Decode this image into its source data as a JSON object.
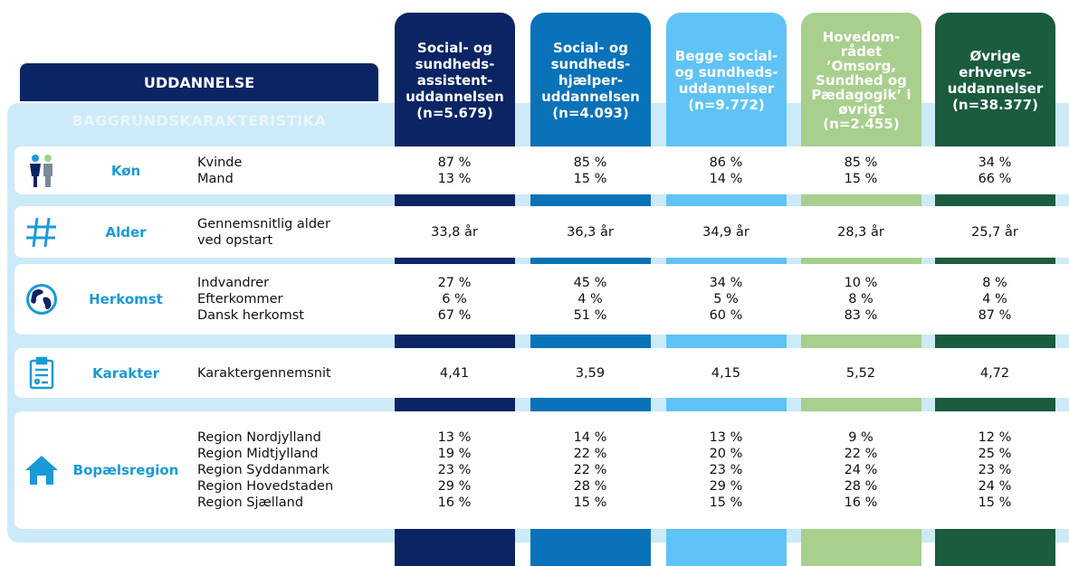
{
  "header": {
    "title": "UDDANNELSE",
    "subtitle": "BAGGRUNDSKARAKTERISTIKA"
  },
  "columns": [
    {
      "lines": [
        "Social- og",
        "sundheds-",
        "assistent-",
        "uddannelsen",
        "(n=5.679)"
      ],
      "color": "#0b2463"
    },
    {
      "lines": [
        "Social- og",
        "sundheds-",
        "hjælper-",
        "uddannelsen",
        "(n=4.093)"
      ],
      "color": "#0a72b8"
    },
    {
      "lines": [
        "Begge social-",
        "og sundheds-",
        "uddannelser",
        "(n=9.772)"
      ],
      "color": "#5fc3f5"
    },
    {
      "lines": [
        "Hovedom-",
        "rådet",
        "’Omsorg,",
        "Sundhed og",
        "Pædagogik’ i",
        "øvrigt",
        "(n=2.455)"
      ],
      "color": "#a8cf8e"
    },
    {
      "lines": [
        "Øvrige",
        "erhvervs-",
        "uddannelser",
        "(n=38.377)"
      ],
      "color": "#1a5c3d"
    }
  ],
  "rows": [
    {
      "category": "Køn",
      "items": [
        "Kvinde",
        "Mand"
      ],
      "values": [
        [
          "87 %",
          "13 %"
        ],
        [
          "85 %",
          "15 %"
        ],
        [
          "86 %",
          "14 %"
        ],
        [
          "85 %",
          "15 %"
        ],
        [
          "34 %",
          "66 %"
        ]
      ]
    },
    {
      "category": "Alder",
      "items": [
        "Gennemsnitlig alder",
        "ved opstart"
      ],
      "values": [
        [
          "33,8 år"
        ],
        [
          "36,3 år"
        ],
        [
          "34,9 år"
        ],
        [
          "28,3 år"
        ],
        [
          "25,7 år"
        ]
      ]
    },
    {
      "category": "Herkomst",
      "items": [
        "Indvandrer",
        "Efterkommer",
        "Dansk herkomst"
      ],
      "values": [
        [
          "27 %",
          "6 %",
          "67 %"
        ],
        [
          "45 %",
          "4 %",
          "51 %"
        ],
        [
          "34 %",
          "5 %",
          "60 %"
        ],
        [
          "10 %",
          "8 %",
          "83 %"
        ],
        [
          "8 %",
          "4 %",
          "87 %"
        ]
      ]
    },
    {
      "category": "Karakter",
      "items": [
        "Karaktergennemsnit"
      ],
      "values": [
        [
          "4,41"
        ],
        [
          "3,59"
        ],
        [
          "4,15"
        ],
        [
          "5,52"
        ],
        [
          "4,72"
        ]
      ]
    },
    {
      "category": "Bopælsregion",
      "items": [
        "Region Nordjylland",
        "Region Midtjylland",
        "Region Syddanmark",
        "Region Hovedstaden",
        "Region Sjælland"
      ],
      "values": [
        [
          "13 %",
          "19 %",
          "23 %",
          "29 %",
          "16 %"
        ],
        [
          "14 %",
          "22 %",
          "22 %",
          "28 %",
          "15 %"
        ],
        [
          "13 %",
          "20 %",
          "23 %",
          "29 %",
          "15 %"
        ],
        [
          "9 %",
          "22 %",
          "24 %",
          "28 %",
          "16 %"
        ],
        [
          "12 %",
          "25 %",
          "23 %",
          "24 %",
          "15 %"
        ]
      ]
    }
  ]
}
